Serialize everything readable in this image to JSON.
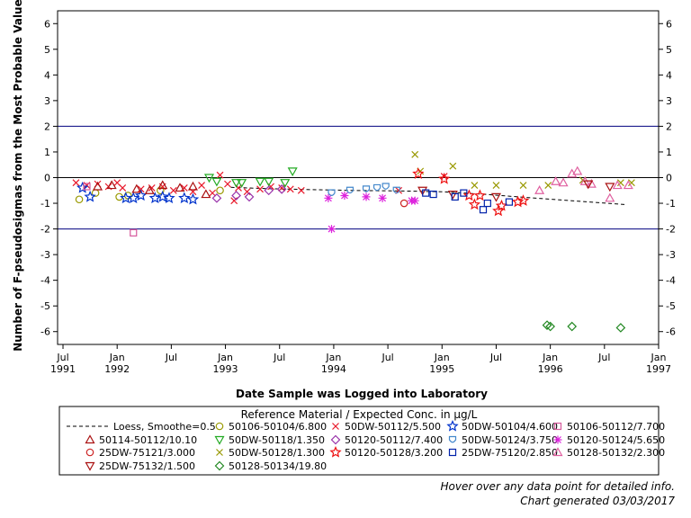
{
  "chart_data": {
    "type": "scatter",
    "xlabel": "Date Sample was Logged into Laboratory",
    "ylabel": "Number of F-pseudosigmas from the Most Probable Value",
    "ylim": [
      -6.5,
      6.5
    ],
    "yticks": [
      -6,
      -5,
      -4,
      -3,
      -2,
      -1,
      0,
      1,
      2,
      3,
      4,
      5,
      6
    ],
    "xlim": [
      1991.45,
      1997.0
    ],
    "xticks": [
      {
        "value": 1991.5,
        "top": "Jul",
        "bottom": "1991"
      },
      {
        "value": 1992.0,
        "top": "Jan",
        "bottom": "1992"
      },
      {
        "value": 1992.5,
        "top": "Jul",
        "bottom": ""
      },
      {
        "value": 1993.0,
        "top": "Jan",
        "bottom": "1993"
      },
      {
        "value": 1993.5,
        "top": "Jul",
        "bottom": ""
      },
      {
        "value": 1994.0,
        "top": "Jan",
        "bottom": "1994"
      },
      {
        "value": 1994.5,
        "top": "Jul",
        "bottom": ""
      },
      {
        "value": 1995.0,
        "top": "Jan",
        "bottom": "1995"
      },
      {
        "value": 1995.5,
        "top": "Jul",
        "bottom": ""
      },
      {
        "value": 1996.0,
        "top": "Jan",
        "bottom": "1996"
      },
      {
        "value": 1996.5,
        "top": "Jul",
        "bottom": ""
      },
      {
        "value": 1997.0,
        "top": "Jan",
        "bottom": "1997"
      }
    ],
    "reference_lines": [
      {
        "y": 2,
        "color": "#000080"
      },
      {
        "y": 0,
        "color": "#000000"
      },
      {
        "y": -2,
        "color": "#000080"
      }
    ],
    "grid": false,
    "legend_title": "Reference Material / Expected Conc. in µg/L",
    "legend_placement": "bottom",
    "loess": {
      "name": "Loess, Smoothe=0.5",
      "x": [
        1993.05,
        1993.4,
        1993.8,
        1994.2,
        1994.6,
        1995.0,
        1995.4,
        1995.8,
        1996.2,
        1996.7
      ],
      "y": [
        -0.38,
        -0.43,
        -0.47,
        -0.5,
        -0.52,
        -0.55,
        -0.65,
        -0.78,
        -0.9,
        -1.05
      ]
    },
    "series": [
      {
        "name": "50106-50104/6.800",
        "marker": "circle",
        "color": "#999900",
        "x": [
          1991.65,
          1991.8,
          1992.02,
          1992.1,
          1992.4,
          1992.95
        ],
        "y": [
          -0.85,
          -0.6,
          -0.75,
          -0.7,
          -0.5,
          -0.5
        ]
      },
      {
        "name": "50DW-50112/5.500",
        "marker": "x",
        "color": "#e8182a",
        "x": [
          1991.62,
          1991.72,
          1991.82,
          1991.92,
          1992.0,
          1992.05,
          1992.22,
          1992.32,
          1992.42,
          1992.52,
          1992.62,
          1992.7,
          1992.78,
          1992.88,
          1992.95,
          1993.02,
          1993.08,
          1993.12,
          1993.2,
          1993.32,
          1993.42,
          1993.52,
          1993.6,
          1993.7,
          1994.6,
          1995.02
        ],
        "y": [
          -0.2,
          -0.3,
          -0.25,
          -0.35,
          -0.2,
          -0.4,
          -0.45,
          -0.4,
          -0.35,
          -0.5,
          -0.4,
          -0.55,
          -0.3,
          -0.6,
          0.1,
          -0.25,
          -0.9,
          -0.4,
          -0.55,
          -0.45,
          -0.35,
          -0.4,
          -0.45,
          -0.5,
          -0.5,
          0.05
        ]
      },
      {
        "name": "50DW-50104/4.600",
        "marker": "star",
        "color": "#0033cc",
        "x": [
          1991.68,
          1991.75,
          1992.08,
          1992.15,
          1992.22,
          1992.35,
          1992.42,
          1992.48,
          1992.62,
          1992.7
        ],
        "y": [
          -0.4,
          -0.75,
          -0.8,
          -0.8,
          -0.7,
          -0.8,
          -0.75,
          -0.8,
          -0.8,
          -0.85
        ]
      },
      {
        "name": "50106-50112/7.700",
        "marker": "square",
        "color": "#d65a9c",
        "x": [
          1991.72,
          1992.15
        ],
        "y": [
          -0.35,
          -2.15
        ]
      },
      {
        "name": "50114-50112/10.10",
        "marker": "triangle",
        "color": "#aa1111",
        "x": [
          1991.82,
          1991.95,
          1992.18,
          1992.3,
          1992.42,
          1992.58,
          1992.7,
          1992.82
        ],
        "y": [
          -0.35,
          -0.3,
          -0.45,
          -0.5,
          -0.3,
          -0.4,
          -0.35,
          -0.65
        ]
      },
      {
        "name": "50DW-50118/1.350",
        "marker": "triangle-down",
        "color": "#22aa22",
        "x": [
          1992.85,
          1992.92,
          1993.1,
          1993.15,
          1993.32,
          1993.4,
          1993.55,
          1993.62
        ],
        "y": [
          0.0,
          -0.15,
          -0.2,
          -0.2,
          -0.15,
          -0.15,
          -0.2,
          0.25
        ]
      },
      {
        "name": "50DW-50128/1.300",
        "marker": "x",
        "color": "#999900",
        "x": [
          1994.75,
          1994.8,
          1995.1,
          1995.3,
          1995.5,
          1995.75,
          1995.98,
          1996.3,
          1996.65,
          1996.75
        ],
        "y": [
          0.9,
          0.25,
          0.45,
          -0.3,
          -0.3,
          -0.3,
          -0.3,
          -0.1,
          -0.2,
          -0.2
        ]
      },
      {
        "name": "50120-50124/5.650",
        "marker": "asterisk",
        "color": "#dd22dd",
        "x": [
          1993.95,
          1993.98,
          1994.1,
          1994.3,
          1994.45,
          1994.72,
          1994.75
        ],
        "y": [
          -0.8,
          -2.0,
          -0.7,
          -0.75,
          -0.8,
          -0.9,
          -0.9
        ]
      },
      {
        "name": "25DW-75121/3.000",
        "marker": "circle",
        "color": "#cc2222",
        "x": [
          1994.65
        ],
        "y": [
          -1.0
        ]
      },
      {
        "name": "50120-50112/7.400",
        "marker": "diamond",
        "color": "#9933aa",
        "x": [
          1992.92,
          1993.1,
          1993.22,
          1993.4,
          1993.52
        ],
        "y": [
          -0.8,
          -0.7,
          -0.75,
          -0.5,
          -0.45
        ]
      },
      {
        "name": "50DW-50124/3.750",
        "marker": "shield",
        "color": "#4488cc",
        "x": [
          1993.98,
          1994.15,
          1994.3,
          1994.4,
          1994.48,
          1994.58
        ],
        "y": [
          -0.6,
          -0.5,
          -0.45,
          -0.4,
          -0.35,
          -0.5
        ]
      },
      {
        "name": "50128-50132/2.300",
        "marker": "triangle",
        "color": "#e060a0",
        "x": [
          1995.9,
          1996.05,
          1996.12,
          1996.2,
          1996.25,
          1996.32,
          1996.38,
          1996.55,
          1996.62,
          1996.72
        ],
        "y": [
          -0.5,
          -0.15,
          -0.2,
          0.15,
          0.25,
          -0.15,
          -0.25,
          -0.8,
          -0.3,
          -0.3
        ]
      },
      {
        "name": "25DW-75132/1.500",
        "marker": "triangle-down",
        "color": "#aa1111",
        "x": [
          1994.82,
          1995.1,
          1995.5,
          1996.35,
          1996.55
        ],
        "y": [
          -0.5,
          -0.65,
          -0.75,
          -0.25,
          -0.35
        ]
      },
      {
        "name": "50128-50134/19.80",
        "marker": "diamond",
        "color": "#228822",
        "x": [
          1995.97,
          1996.0,
          1996.2,
          1996.65
        ],
        "y": [
          -5.75,
          -5.8,
          -5.8,
          -5.85
        ]
      },
      {
        "name": "50120-50128/3.200",
        "marker": "star",
        "color": "#ee1111",
        "x": [
          1994.78,
          1995.02,
          1995.25,
          1995.3,
          1995.35,
          1995.52,
          1995.55,
          1995.7,
          1995.75
        ],
        "y": [
          0.15,
          -0.05,
          -0.7,
          -1.05,
          -0.7,
          -1.3,
          -1.1,
          -0.95,
          -0.9
        ]
      },
      {
        "name": "25DW-75120/2.850",
        "marker": "square",
        "color": "#0022aa",
        "x": [
          1994.85,
          1994.92,
          1995.12,
          1995.2,
          1995.38,
          1995.42,
          1995.62
        ],
        "y": [
          -0.6,
          -0.65,
          -0.75,
          -0.6,
          -1.25,
          -1.0,
          -0.95
        ]
      }
    ],
    "legend_order": [
      [
        "loess",
        "50106-50104/6.800",
        "50DW-50112/5.500",
        "50DW-50104/4.600",
        "50106-50112/7.700"
      ],
      [
        "50114-50112/10.10",
        "50DW-50118/1.350",
        "50120-50112/7.400",
        "50DW-50124/3.750",
        "50120-50124/5.650"
      ],
      [
        "25DW-75121/3.000",
        "50DW-50128/1.300",
        "50120-50128/3.200",
        "25DW-75120/2.850",
        "50128-50132/2.300"
      ],
      [
        "25DW-75132/1.500",
        "50128-50134/19.80"
      ]
    ]
  },
  "footer": {
    "hover_note": "Hover over any data point for detailed info.",
    "generated_note": "Chart generated 03/03/2017"
  }
}
